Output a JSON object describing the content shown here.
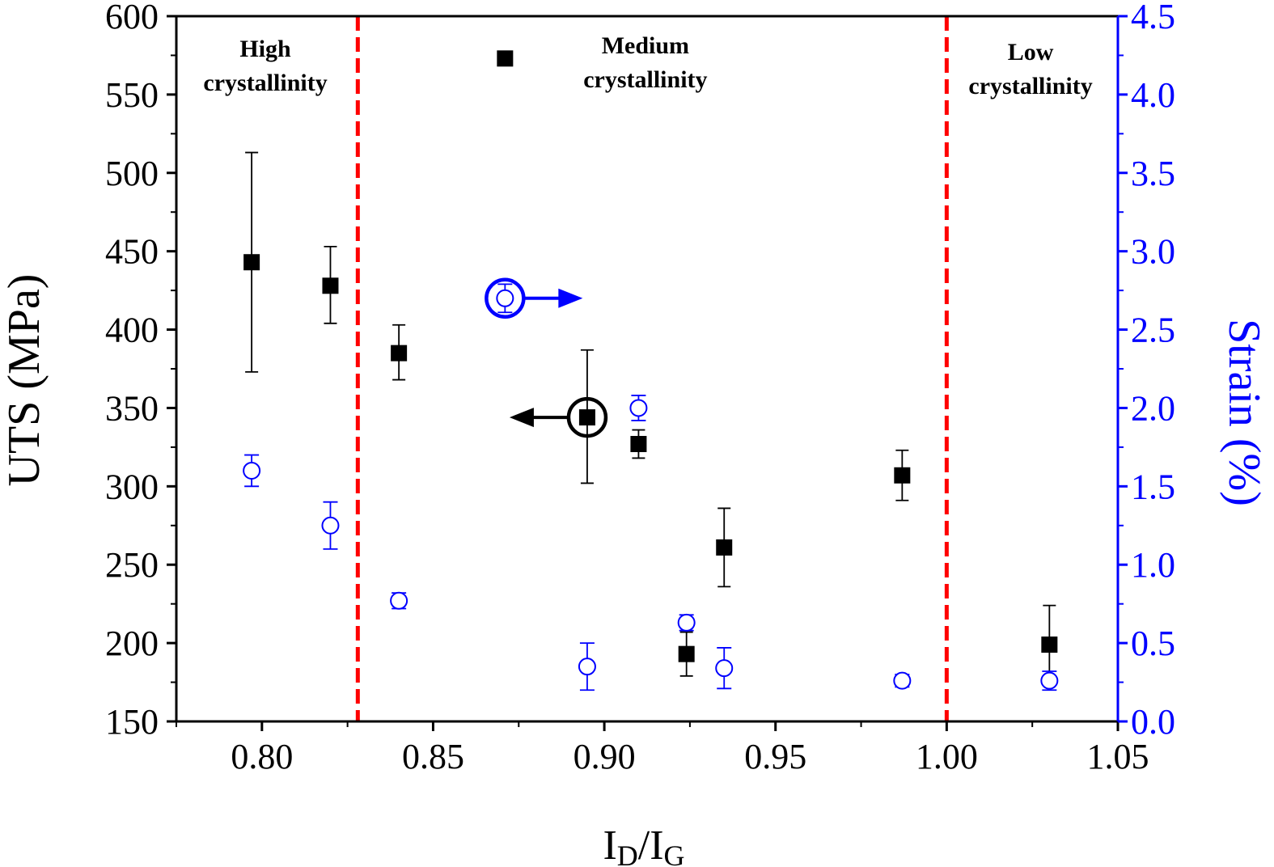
{
  "chart_data": {
    "type": "scatter",
    "xlabel": {
      "main": "I",
      "sub1": "D",
      "slash": "/I",
      "sub2": "G"
    },
    "ylabel_left": "UTS (MPa)",
    "ylabel_right": "Strain (%)",
    "xlim": [
      0.775,
      1.05
    ],
    "ylim_left": [
      150,
      600
    ],
    "ylim_right": [
      0,
      4.5
    ],
    "x_ticks": [
      0.8,
      0.85,
      0.9,
      0.95,
      1.0,
      1.05
    ],
    "x_tick_labels": [
      "0.80",
      "0.85",
      "0.90",
      "0.95",
      "1.00",
      "1.05"
    ],
    "y_left_ticks": [
      150,
      200,
      250,
      300,
      350,
      400,
      450,
      500,
      550,
      600
    ],
    "y_left_tick_labels": [
      "150",
      "200",
      "250",
      "300",
      "350",
      "400",
      "450",
      "500",
      "550",
      "600"
    ],
    "y_right_ticks": [
      0,
      0.5,
      1,
      1.5,
      2,
      2.5,
      3,
      3.5,
      4,
      4.5
    ],
    "y_right_tick_labels": [
      "0.0",
      "0.5",
      "1.0",
      "1.5",
      "2.0",
      "2.5",
      "3.0",
      "3.5",
      "4.0",
      "4.5"
    ],
    "series": [
      {
        "axis": "left",
        "color": "#000000",
        "marker": "filled-square",
        "points": [
          {
            "x": 0.797,
            "y": 443,
            "err_low": 373,
            "err_high": 513
          },
          {
            "x": 0.82,
            "y": 428,
            "err_low": 404,
            "err_high": 453
          },
          {
            "x": 0.84,
            "y": 385,
            "err_low": 368,
            "err_high": 403
          },
          {
            "x": 0.871,
            "y": 573
          },
          {
            "x": 0.895,
            "y": 344,
            "err_low": 302,
            "err_high": 387
          },
          {
            "x": 0.91,
            "y": 327,
            "err_low": 318,
            "err_high": 336
          },
          {
            "x": 0.924,
            "y": 193,
            "err_low": 179,
            "err_high": 207
          },
          {
            "x": 0.935,
            "y": 261,
            "err_low": 236,
            "err_high": 286
          },
          {
            "x": 0.987,
            "y": 307,
            "err_low": 291,
            "err_high": 323
          },
          {
            "x": 1.03,
            "y": 199,
            "err_low": 174,
            "err_high": 224
          }
        ]
      },
      {
        "axis": "right",
        "color": "#0000ff",
        "marker": "open-circle",
        "points": [
          {
            "x": 0.797,
            "y": 1.6,
            "err_low": 1.5,
            "err_high": 1.7
          },
          {
            "x": 0.82,
            "y": 1.25,
            "err_low": 1.1,
            "err_high": 1.4
          },
          {
            "x": 0.84,
            "y": 0.77,
            "err_low": 0.72,
            "err_high": 0.82
          },
          {
            "x": 0.871,
            "y": 2.7,
            "err_low": 2.61,
            "err_high": 2.79
          },
          {
            "x": 0.895,
            "y": 0.35,
            "err_low": 0.2,
            "err_high": 0.5
          },
          {
            "x": 0.91,
            "y": 2.0,
            "err_low": 1.92,
            "err_high": 2.08
          },
          {
            "x": 0.924,
            "y": 0.63,
            "err_low": 0.58,
            "err_high": 0.68
          },
          {
            "x": 0.935,
            "y": 0.34,
            "err_low": 0.21,
            "err_high": 0.47
          },
          {
            "x": 0.987,
            "y": 0.26,
            "err_low": 0.22,
            "err_high": 0.3
          },
          {
            "x": 1.03,
            "y": 0.26,
            "err_low": 0.2,
            "err_high": 0.32
          }
        ]
      }
    ],
    "divider_lines": [
      {
        "x": 0.828,
        "color": "#ff0000",
        "style": "dashed"
      },
      {
        "x": 1.0,
        "color": "#ff0000",
        "style": "dashed"
      }
    ],
    "region_labels": [
      {
        "x": 0.801,
        "lines": [
          "High",
          "crystallinity"
        ]
      },
      {
        "x": 0.912,
        "lines": [
          "Medium",
          "crystallinity"
        ]
      },
      {
        "x": 1.0245,
        "lines": [
          "Low",
          "crystallinity"
        ]
      }
    ],
    "axis_indicators": [
      {
        "x": 0.895,
        "y": 344,
        "axis": "left",
        "direction": "left",
        "color": "#000000"
      },
      {
        "x": 0.871,
        "y": 2.7,
        "axis": "right",
        "direction": "right",
        "color": "#0000ff"
      }
    ]
  }
}
